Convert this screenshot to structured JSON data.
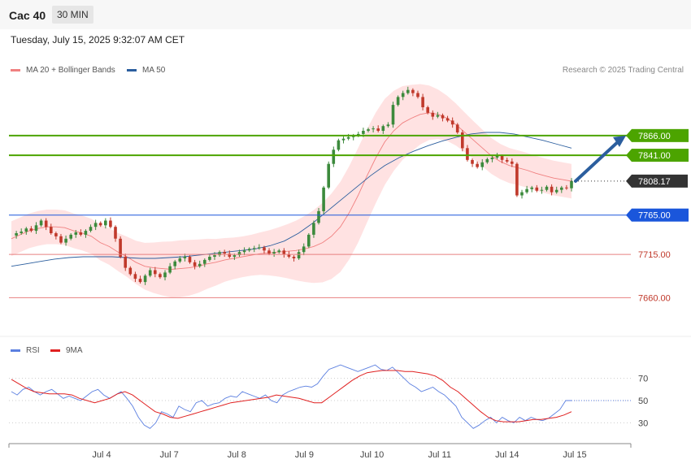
{
  "header": {
    "instrument": "Cac 40",
    "timeframe": "30 MIN",
    "timestamp": "Tuesday, July 15, 2025 9:32:07 AM CET"
  },
  "legend": {
    "ma20_label": "MA 20 + Bollinger Bands",
    "ma50_label": "MA 50",
    "credit": "Research © 2025 Trading Central"
  },
  "rsi_legend": {
    "rsi_label": "RSI",
    "ma_label": "9MA"
  },
  "colors": {
    "ma20": "#f08080",
    "ma50": "#2b5e9e",
    "band": "#ffd6d6",
    "up": "#3c8a3c",
    "down": "#c0392b",
    "resistance": "#4ca400",
    "support": "#1a56db",
    "lower": "#e88080",
    "rsi": "#5b7fe0",
    "rsi_ma": "#e02020"
  },
  "chart_data": [
    {
      "type": "candlestick",
      "title": "Cac 40",
      "x_labels": [
        "Jul 4",
        "Jul 7",
        "Jul 8",
        "Jul 9",
        "Jul 10",
        "Jul 11",
        "Jul 14",
        "Jul 15"
      ],
      "ylim": [
        7615,
        7935
      ],
      "current_price": "7808.17",
      "levels": [
        {
          "label": "7866.00",
          "value": 7866,
          "kind": "resistance"
        },
        {
          "label": "7841.00",
          "value": 7841,
          "kind": "resistance"
        },
        {
          "label": "7808.17",
          "value": 7808.17,
          "kind": "current"
        },
        {
          "label": "7765.00",
          "value": 7765,
          "kind": "support"
        },
        {
          "label": "7715.00",
          "value": 7715,
          "kind": "lower"
        },
        {
          "label": "7660.00",
          "value": 7660,
          "kind": "lower"
        }
      ],
      "close_path": [
        7739,
        7742,
        7744,
        7748,
        7745,
        7752,
        7758,
        7750,
        7742,
        7738,
        7730,
        7735,
        7740,
        7743,
        7740,
        7745,
        7750,
        7755,
        7752,
        7758,
        7750,
        7735,
        7712,
        7698,
        7690,
        7684,
        7680,
        7688,
        7695,
        7690,
        7686,
        7692,
        7700,
        7706,
        7710,
        7712,
        7705,
        7700,
        7703,
        7708,
        7712,
        7714,
        7718,
        7716,
        7712,
        7714,
        7718,
        7720,
        7722,
        7723,
        7724,
        7720,
        7716,
        7718,
        7720,
        7715,
        7712,
        7710,
        7718,
        7725,
        7740,
        7755,
        7770,
        7800,
        7830,
        7848,
        7860,
        7862,
        7864,
        7866,
        7868,
        7872,
        7874,
        7875,
        7872,
        7878,
        7880,
        7905,
        7915,
        7920,
        7924,
        7920,
        7915,
        7902,
        7895,
        7890,
        7892,
        7888,
        7885,
        7880,
        7870,
        7850,
        7835,
        7830,
        7826,
        7832,
        7836,
        7838,
        7840,
        7835,
        7833,
        7830,
        7790,
        7794,
        7798,
        7800,
        7796,
        7797,
        7801,
        7794,
        7797,
        7800,
        7799,
        7808
      ],
      "ma20": [
        7735,
        7740,
        7745,
        7748,
        7750,
        7750,
        7749,
        7745,
        7742,
        7738,
        7730,
        7725,
        7718,
        7712,
        7705,
        7700,
        7698,
        7697,
        7696,
        7697,
        7698,
        7700,
        7703,
        7705,
        7708,
        7710,
        7712,
        7714,
        7716,
        7717,
        7718,
        7719,
        7720,
        7722,
        7725,
        7730,
        7738,
        7750,
        7768,
        7790,
        7815,
        7838,
        7858,
        7872,
        7882,
        7888,
        7893,
        7895,
        7893,
        7888,
        7880,
        7870,
        7860,
        7850,
        7840,
        7833,
        7828,
        7825,
        7822,
        7818,
        7815,
        7812,
        7810,
        7808
      ],
      "ma50": [
        7700,
        7703,
        7706,
        7709,
        7711,
        7712,
        7712,
        7712,
        7711,
        7710,
        7710,
        7711,
        7712,
        7714,
        7716,
        7718,
        7720,
        7722,
        7726,
        7732,
        7742,
        7755,
        7770,
        7785,
        7800,
        7815,
        7828,
        7838,
        7846,
        7853,
        7859,
        7864,
        7868,
        7870,
        7870,
        7868,
        7864,
        7860,
        7855,
        7850
      ]
    },
    {
      "type": "line",
      "title": "RSI",
      "series": [
        {
          "name": "RSI"
        },
        {
          "name": "9MA"
        }
      ],
      "ylim": [
        15,
        85
      ],
      "ticks": [
        70,
        50,
        30
      ],
      "rsi_last": 50,
      "rsi": [
        58,
        55,
        60,
        62,
        58,
        55,
        58,
        60,
        56,
        52,
        54,
        52,
        50,
        54,
        58,
        60,
        55,
        52,
        55,
        58,
        52,
        45,
        35,
        28,
        25,
        30,
        40,
        38,
        35,
        45,
        42,
        40,
        48,
        50,
        45,
        47,
        48,
        52,
        54,
        53,
        58,
        56,
        54,
        52,
        55,
        50,
        48,
        55,
        58,
        60,
        62,
        63,
        62,
        65,
        72,
        78,
        80,
        82,
        80,
        78,
        76,
        78,
        80,
        82,
        78,
        77,
        80,
        75,
        70,
        65,
        62,
        58,
        60,
        62,
        58,
        55,
        50,
        45,
        35,
        30,
        25,
        28,
        32,
        35,
        30,
        35,
        32,
        30,
        35,
        32,
        35,
        33,
        32,
        34,
        38,
        42,
        50,
        50
      ],
      "rsi_ma": [
        69,
        65,
        61,
        58,
        57,
        56,
        56,
        56,
        55,
        52,
        50,
        48,
        50,
        52,
        56,
        58,
        55,
        50,
        45,
        40,
        38,
        35,
        34,
        36,
        38,
        40,
        42,
        44,
        46,
        48,
        49,
        50,
        51,
        52,
        53,
        55,
        54,
        53,
        52,
        50,
        48,
        48,
        53,
        58,
        63,
        68,
        72,
        75,
        76,
        77,
        77,
        77,
        76,
        76,
        75,
        74,
        72,
        68,
        62,
        58,
        52,
        46,
        40,
        35,
        32,
        31,
        31,
        31,
        32,
        33,
        33,
        34,
        35,
        37,
        40
      ]
    }
  ]
}
